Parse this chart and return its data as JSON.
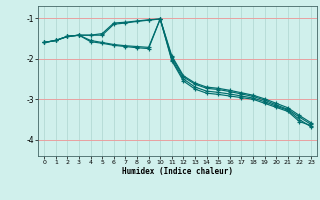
{
  "xlabel": "Humidex (Indice chaleur)",
  "background_color": "#d0f0ec",
  "grid_color_h": "#e8a0a0",
  "grid_color_v": "#b8ddd8",
  "line_color": "#006e6e",
  "xlim": [
    -0.5,
    23.5
  ],
  "ylim": [
    -4.4,
    -0.7
  ],
  "yticks": [
    -4,
    -3,
    -2,
    -1
  ],
  "xticks": [
    0,
    1,
    2,
    3,
    4,
    5,
    6,
    7,
    8,
    9,
    10,
    11,
    12,
    13,
    14,
    15,
    16,
    17,
    18,
    19,
    20,
    21,
    22,
    23
  ],
  "lines": [
    {
      "x": [
        0,
        1,
        2,
        3,
        4,
        5,
        6,
        7,
        8,
        9,
        10,
        11,
        12,
        13,
        14,
        15,
        16,
        17,
        18,
        19,
        20,
        21,
        22,
        23
      ],
      "y": [
        -1.6,
        -1.55,
        -1.45,
        -1.42,
        -1.42,
        -1.42,
        -1.15,
        -1.12,
        -1.08,
        -1.05,
        -1.02,
        -2.05,
        -2.55,
        -2.75,
        -2.85,
        -2.88,
        -2.92,
        -2.96,
        -3.0,
        -3.1,
        -3.2,
        -3.3,
        -3.55,
        -3.65
      ]
    },
    {
      "x": [
        0,
        1,
        2,
        3,
        4,
        5,
        6,
        7,
        8,
        9,
        10,
        11,
        12,
        13,
        14,
        15,
        16,
        17,
        18,
        19,
        20,
        21,
        22,
        23
      ],
      "y": [
        -1.6,
        -1.55,
        -1.45,
        -1.42,
        -1.42,
        -1.38,
        -1.12,
        -1.1,
        -1.07,
        -1.04,
        -1.02,
        -2.02,
        -2.5,
        -2.7,
        -2.8,
        -2.83,
        -2.87,
        -2.92,
        -2.97,
        -3.06,
        -3.17,
        -3.27,
        -3.5,
        -3.68
      ]
    },
    {
      "x": [
        0,
        1,
        2,
        3,
        4,
        5,
        6,
        7,
        8,
        9,
        10,
        11,
        12,
        13,
        14,
        15,
        16,
        17,
        18,
        19,
        20,
        21,
        22,
        23
      ],
      "y": [
        -1.6,
        -1.55,
        -1.45,
        -1.42,
        -1.55,
        -1.6,
        -1.65,
        -1.68,
        -1.7,
        -1.72,
        -1.02,
        -1.97,
        -2.45,
        -2.63,
        -2.73,
        -2.76,
        -2.81,
        -2.87,
        -2.93,
        -3.02,
        -3.14,
        -3.25,
        -3.44,
        -3.62
      ]
    },
    {
      "x": [
        0,
        1,
        2,
        3,
        4,
        5,
        6,
        7,
        8,
        9,
        10,
        11,
        12,
        13,
        14,
        15,
        16,
        17,
        18,
        19,
        20,
        21,
        22,
        23
      ],
      "y": [
        -1.6,
        -1.55,
        -1.45,
        -1.42,
        -1.58,
        -1.62,
        -1.67,
        -1.7,
        -1.73,
        -1.75,
        -1.02,
        -1.93,
        -2.42,
        -2.6,
        -2.7,
        -2.73,
        -2.78,
        -2.84,
        -2.9,
        -2.99,
        -3.1,
        -3.21,
        -3.4,
        -3.58
      ]
    }
  ]
}
